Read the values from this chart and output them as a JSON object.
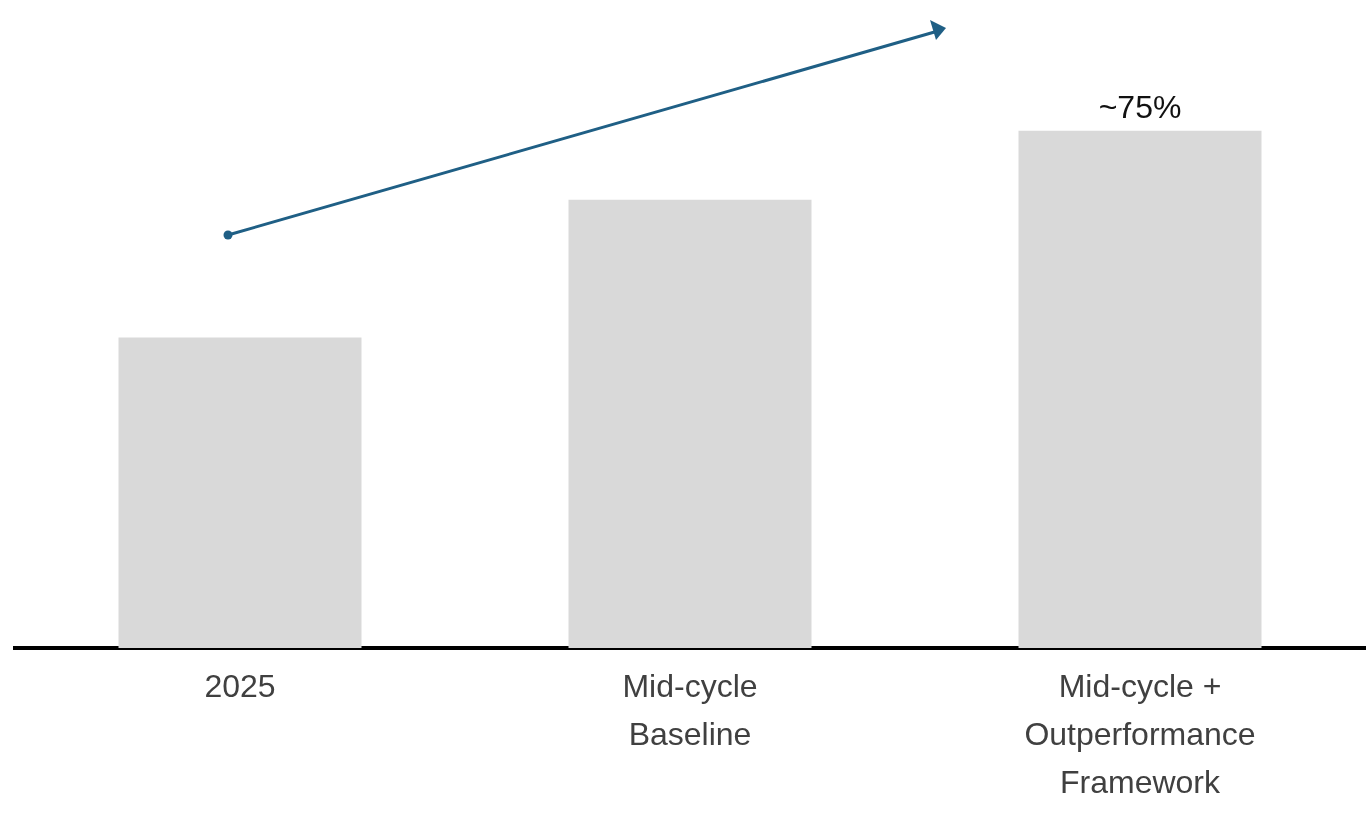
{
  "chart_data": {
    "type": "bar",
    "tick_labels": "x",
    "categories": [
      "2025",
      "Mid-cycle Baseline",
      "Mid-cycle + Outperformance Framework"
    ],
    "values": [
      45,
      65,
      75
    ],
    "color": "#d9d9d9",
    "value_labels": [
      null,
      null,
      "~75%"
    ]
  }
}
